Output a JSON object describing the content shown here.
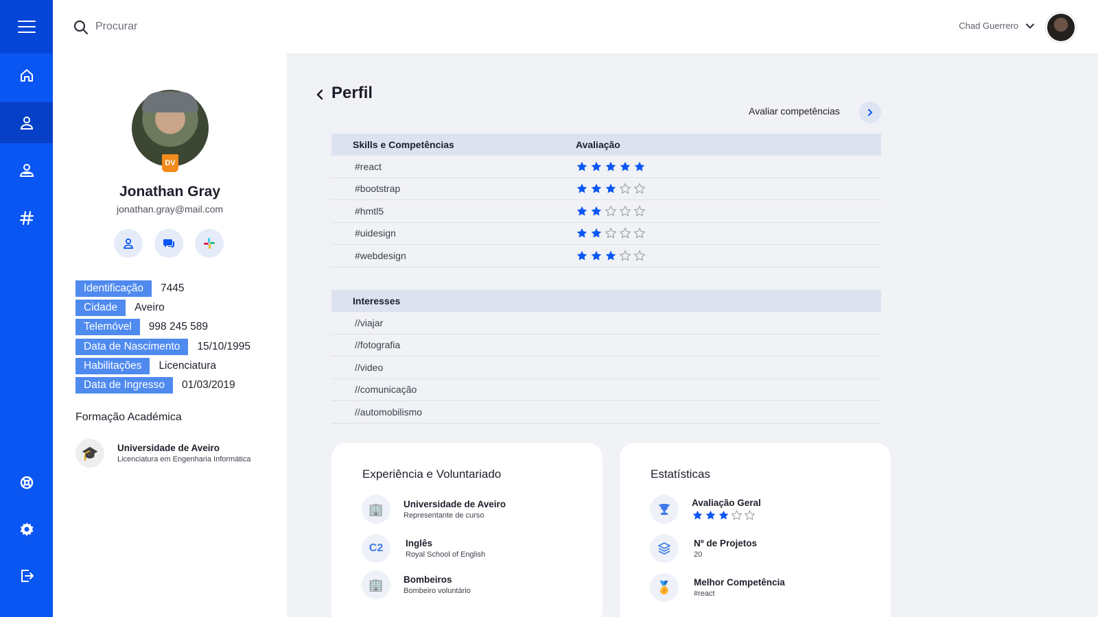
{
  "sidebar": {
    "items": [
      {
        "icon": "home-icon"
      },
      {
        "icon": "user-icon",
        "active": true
      },
      {
        "icon": "users-icon"
      },
      {
        "icon": "hashtag-icon"
      },
      {
        "icon": "help-icon"
      },
      {
        "icon": "settings-icon"
      },
      {
        "icon": "logout-icon"
      }
    ]
  },
  "header": {
    "search_placeholder": "Procurar",
    "user_name": "Chad Guerrero"
  },
  "profile": {
    "name": "Jonathan Gray",
    "email": "jonathan.gray@mail.com",
    "badge": "DV",
    "info": [
      {
        "label": "Identificação",
        "value": "7445"
      },
      {
        "label": "Cidade",
        "value": "Aveiro"
      },
      {
        "label": "Telemóvel",
        "value": "998 245 589"
      },
      {
        "label": "Data de Nascimento",
        "value": "15/10/1995"
      },
      {
        "label": "Habilitações",
        "value": "Licenciatura"
      },
      {
        "label": "Data de Ingresso",
        "value": "01/03/2019"
      }
    ],
    "education_title": "Formação Académica",
    "education": {
      "institution": "Universidade de Aveiro",
      "degree": "Licenciatura em Engenharia Informática"
    }
  },
  "main": {
    "title": "Perfil",
    "evaluate_link": "Avaliar competências",
    "skills": {
      "col_skill": "Skills e Competências",
      "col_rating": "Avaliação",
      "rows": [
        {
          "name": "#react",
          "rating": 5
        },
        {
          "name": "#bootstrap",
          "rating": 3
        },
        {
          "name": "#hmtl5",
          "rating": 2
        },
        {
          "name": "#uidesign",
          "rating": 2
        },
        {
          "name": "#webdesign",
          "rating": 3
        }
      ]
    },
    "interests": {
      "title": "Interesses",
      "rows": [
        "//viajar",
        "//fotografia",
        "//video",
        "//comunicação",
        "//automobilismo"
      ]
    },
    "experience": {
      "title": "Experiência e Voluntariado",
      "items": [
        {
          "title": "Universidade de Aveiro",
          "subtitle": "Representante de curso"
        },
        {
          "title": "Inglês",
          "subtitle": "Royal School of English",
          "badge": "C2"
        },
        {
          "title": "Bombeiros",
          "subtitle": "Bombeiro voluntário"
        }
      ]
    },
    "stats": {
      "title": "Estatísticas",
      "overall_label": "Avaliação Geral",
      "overall_rating": 3,
      "projects_label": "Nº de Projetos",
      "projects_value": "20",
      "best_label": "Melhor Competência",
      "best_value": "#react"
    }
  },
  "colors": {
    "sidebar": "#0a56f2",
    "accent": "#0a56f2",
    "label_bg": "#4f8aef",
    "star": "#0a56f2"
  }
}
